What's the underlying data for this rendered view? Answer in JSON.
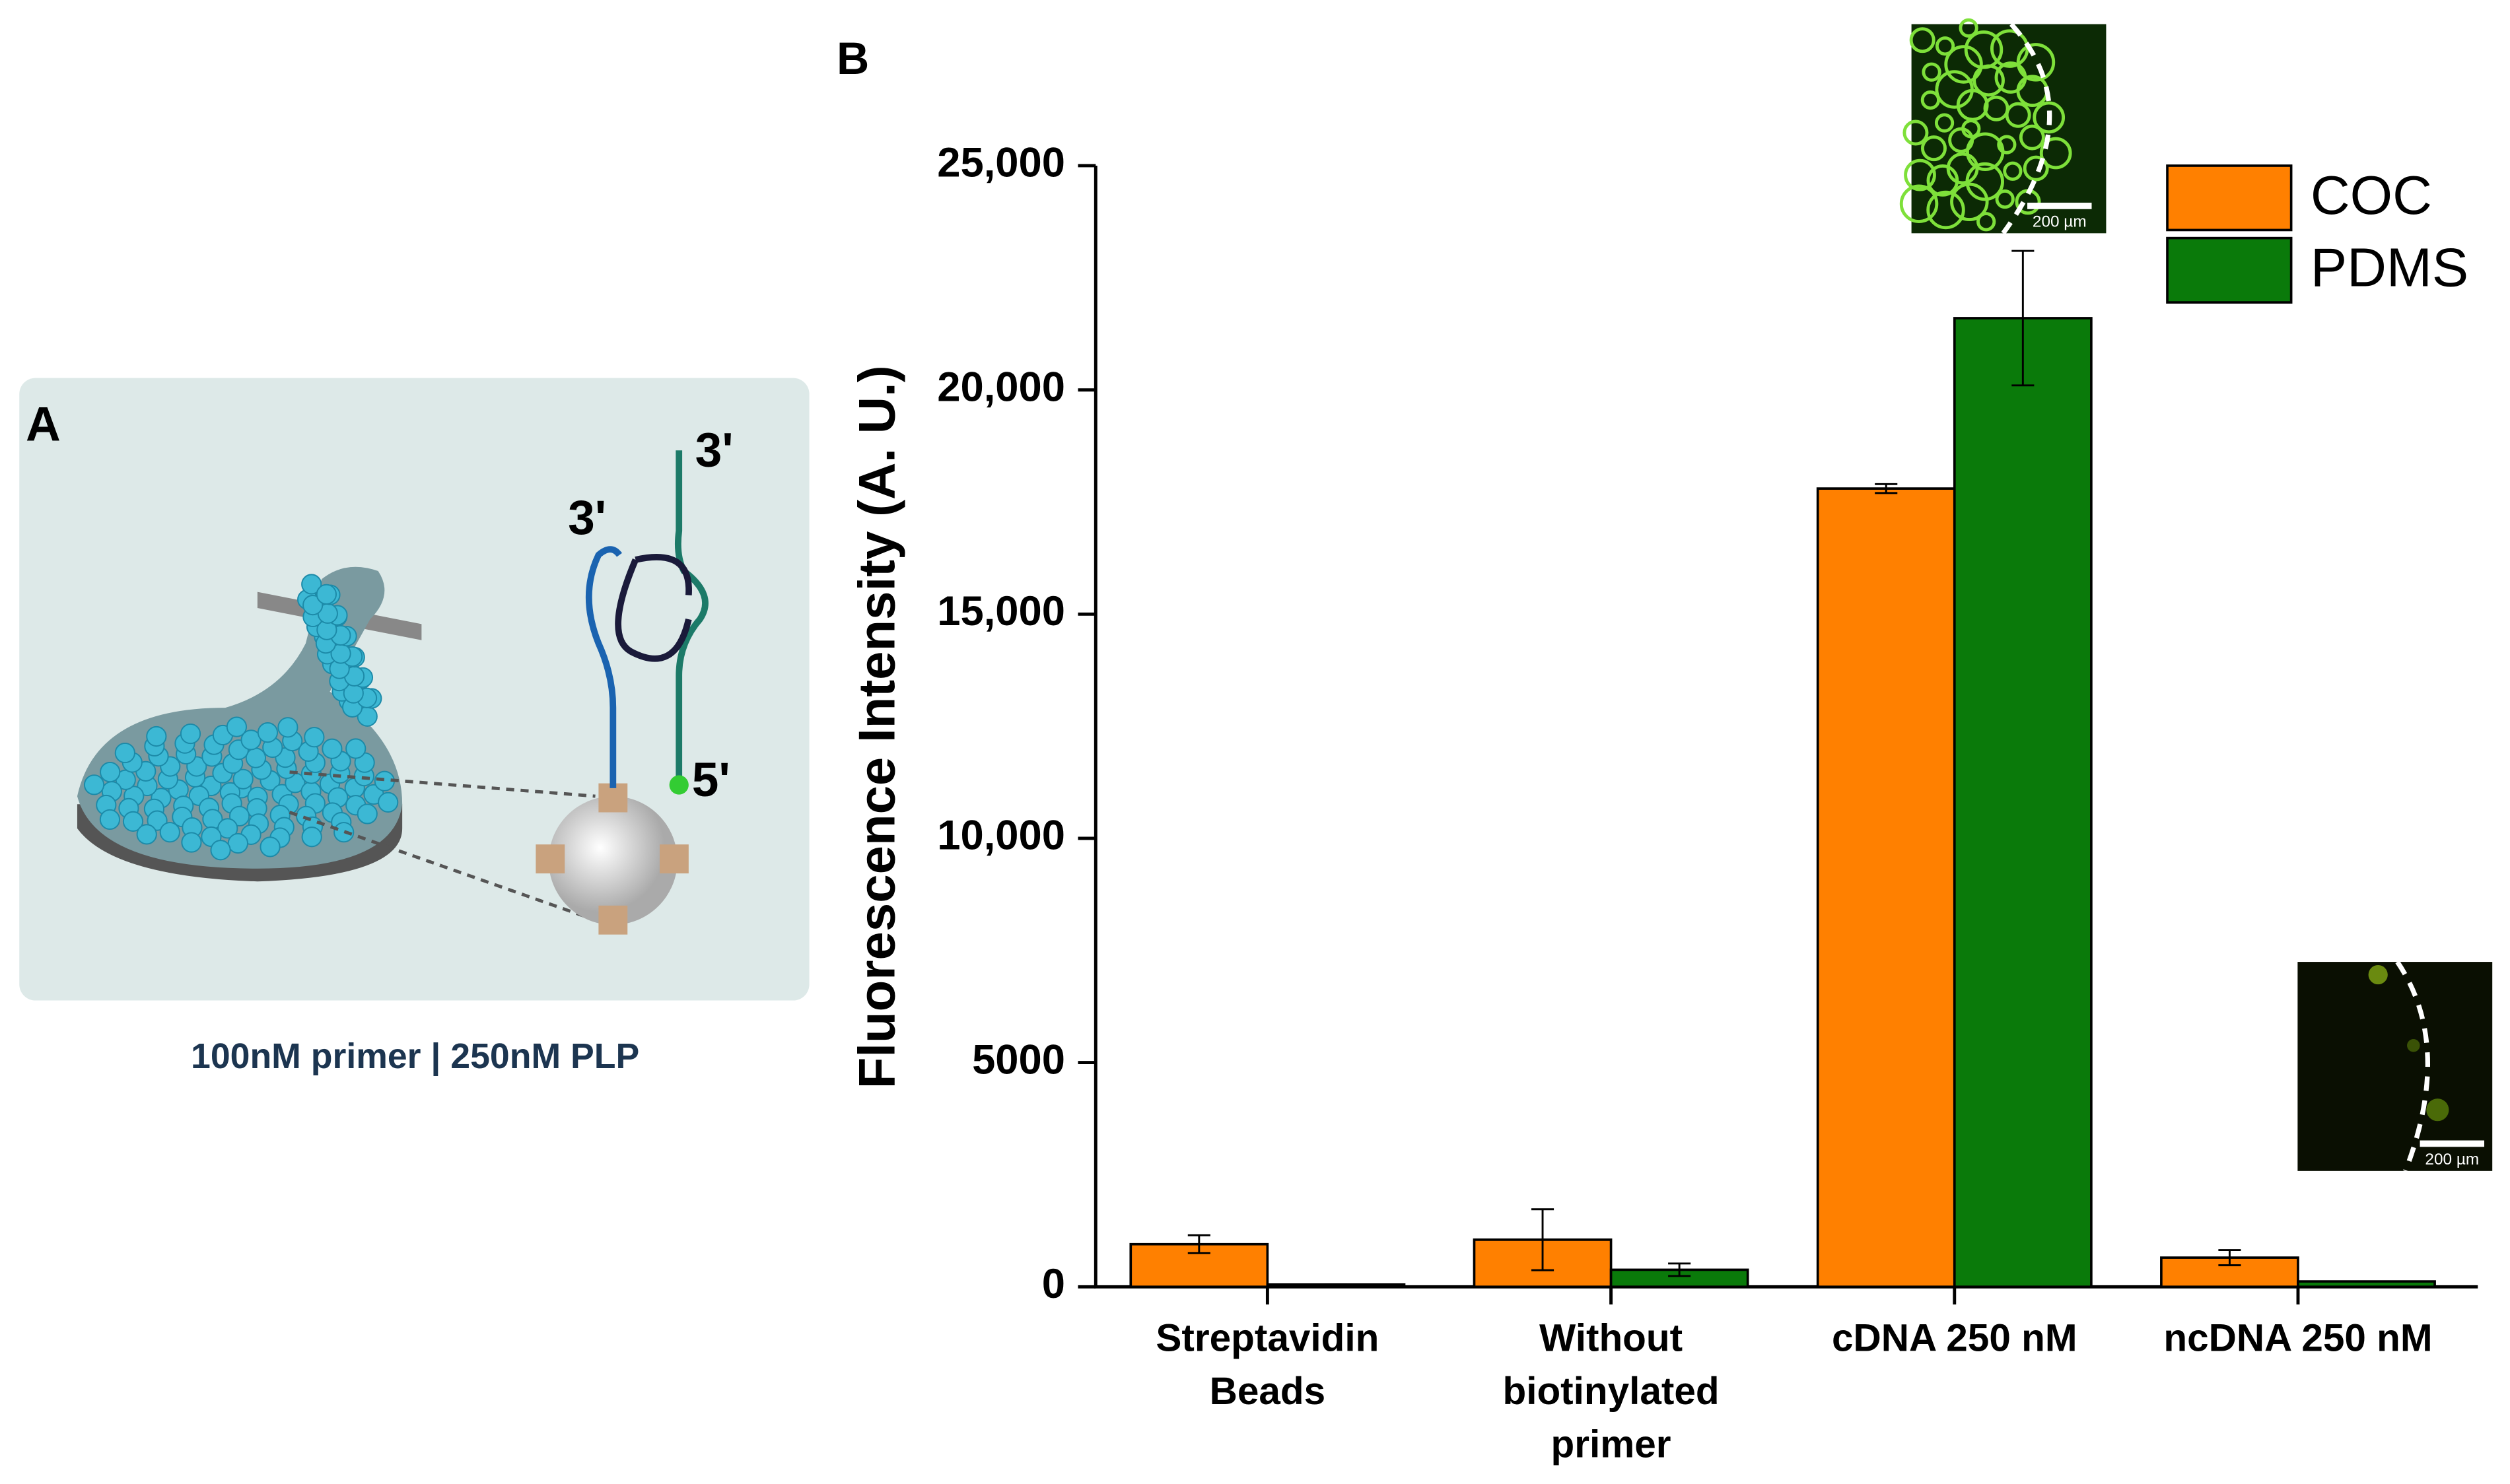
{
  "panel_a": {
    "label": "A",
    "strand_end_left": "3'",
    "strand_end_right": "3'",
    "strand_start": "5'",
    "caption": "100nM primer | 250nM PLP"
  },
  "chart_data": {
    "type": "bar",
    "panel_label": "B",
    "y_label": "Fluorescence Intensity (A. U.)",
    "categories": [
      "Streptavidin Beads",
      "Without biotinylated primer",
      "cDNA 250 nM",
      "ncDNA 250 nM"
    ],
    "series": [
      {
        "name": "COC",
        "color": "#ff8000",
        "values": [
          950,
          1050,
          17800,
          650
        ],
        "errors": [
          200,
          680,
          100,
          170
        ]
      },
      {
        "name": "PDMS",
        "color": "#0a7a0a",
        "values": [
          50,
          380,
          21600,
          120
        ],
        "errors": [
          0,
          140,
          1500,
          0
        ]
      }
    ],
    "ylim": [
      0,
      25000
    ],
    "yticks": [
      0,
      5000,
      {
        "value": 10000,
        "label": "10,000"
      },
      {
        "value": 15000,
        "label": "15,000"
      },
      {
        "value": 20000,
        "label": "20,000"
      },
      {
        "value": 25000,
        "label": "25,000"
      }
    ],
    "legend": "top-right",
    "annotations": [
      "200 µm",
      "200 µm"
    ]
  }
}
